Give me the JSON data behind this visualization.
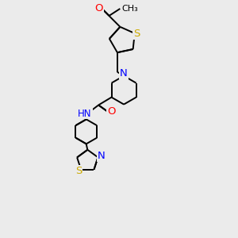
{
  "background_color": "#ebebeb",
  "bond_color": "#000000",
  "atom_colors": {
    "O": "#ff0000",
    "N": "#0000ff",
    "S": "#ccaa00",
    "C": "#000000"
  },
  "font_size": 8.5,
  "figsize": [
    3.0,
    3.0
  ],
  "dpi": 100
}
